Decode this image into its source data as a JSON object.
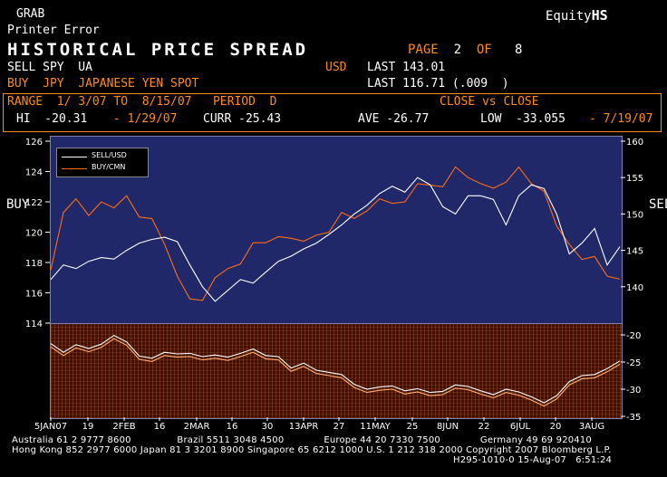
{
  "header": {
    "grab": "GRAB",
    "equity_label": "Equity",
    "function_code": "HS",
    "printer_error": "Printer Error",
    "title": "HISTORICAL PRICE SPREAD",
    "page_label": "PAGE",
    "page_num": "2",
    "page_of": "OF",
    "page_total": "8"
  },
  "legs": {
    "sell_line": "SELL SPY  UA",
    "sell_ccy": "USD",
    "sell_last": "LAST 143.01",
    "buy_line": "BUY  JPY  JAPANESE YEN SPOT",
    "buy_last": "LAST 116.71 (.009  )"
  },
  "range_bar": {
    "range_label": "RANGE  1/ 3/07 TO  8/15/07   PERIOD  D",
    "basis": "CLOSE vs CLOSE",
    "hi": "HI  -20.31",
    "hi_date": "- 1/29/07",
    "curr": "CURR -25.43",
    "ave": "AVE -26.77",
    "low": "LOW  -33.055",
    "low_date": "- 7/19/07"
  },
  "axis_titles": {
    "left": "BUY",
    "right": "SELL"
  },
  "legend": {
    "sell": "SELL/USD",
    "buy": "BUY/CMN"
  },
  "footer": {
    "line1": "Australia 61 2 9777 8600               Brazil 5511 3048 4500             Europe 44 20 7330 7500             Germany 49 69 920410",
    "line2": "Hong Kong 852 2977 6000 Japan 81 3 3201 8900 Singapore 65 6212 1000 U.S. 1 212 318 2000 Copyright 2007 Bloomberg L.P.",
    "line3": "H295-1010-0 15-Aug-07   6:51:24"
  },
  "colors": {
    "orange": "#ff8a1c",
    "price_panel": "#202869",
    "spread_panel": "#3a1108",
    "sell_line": "#ffffff",
    "buy_line": "#ff6a10"
  },
  "chart_data": [
    {
      "type": "line",
      "x_ticks": [
        "5JAN07",
        "19",
        "2FEB",
        "16",
        "2MAR",
        "16",
        "30",
        "13APR",
        "27",
        "11MAY",
        "25",
        "8JUN",
        "22",
        "6JUL",
        "20",
        "3AUG"
      ],
      "left_axis": {
        "label": "BUY",
        "range": [
          114,
          126
        ],
        "ticks": [
          114,
          116,
          118,
          120,
          122,
          124,
          126
        ]
      },
      "right_axis": {
        "label": "SELL",
        "range": [
          135,
          160
        ],
        "ticks": [
          140,
          145,
          150,
          155,
          160
        ]
      },
      "series": [
        {
          "name": "SELL/USD",
          "axis": "right",
          "values": [
            141,
            143,
            142.5,
            143.5,
            144,
            143.8,
            145,
            146,
            146.5,
            146.8,
            146.2,
            143,
            140,
            138,
            139.5,
            141,
            140.5,
            142,
            143.5,
            144.2,
            145.2,
            146,
            147.2,
            148.5,
            150,
            151.2,
            152.8,
            153.8,
            153,
            155,
            154,
            151,
            150,
            152.5,
            152.5,
            152,
            148.5,
            152.5,
            154,
            153.5,
            150,
            144.5,
            146,
            148,
            143,
            145.5
          ]
        },
        {
          "name": "BUY/CMN",
          "axis": "left",
          "values": [
            117.5,
            121.3,
            122.2,
            121.1,
            122.0,
            121.6,
            122.4,
            121.0,
            120.9,
            119.2,
            117.1,
            115.6,
            115.5,
            117.0,
            117.6,
            117.9,
            119.3,
            119.3,
            119.7,
            119.6,
            119.4,
            119.8,
            120.0,
            121.3,
            120.9,
            121.4,
            122.2,
            121.9,
            122.0,
            123.2,
            123.1,
            123.0,
            124.3,
            123.6,
            123.2,
            122.9,
            123.3,
            124.3,
            123.2,
            122.7,
            120.4,
            119.2,
            118.2,
            118.4,
            117.1,
            116.9
          ]
        }
      ]
    },
    {
      "type": "line",
      "right_axis": {
        "range": [
          -35,
          -18
        ],
        "ticks": [
          -20,
          -25,
          -30,
          -35
        ]
      },
      "series": [
        {
          "name": "spread",
          "values": [
            -22.2,
            -23.8,
            -22.4,
            -23.1,
            -22.3,
            -20.7,
            -21.9,
            -24.5,
            -24.9,
            -23.8,
            -24.1,
            -24.0,
            -24.6,
            -24.3,
            -24.7,
            -24.0,
            -23.2,
            -24.4,
            -24.6,
            -26.7,
            -25.8,
            -27.1,
            -27.5,
            -27.9,
            -29.7,
            -30.6,
            -30.2,
            -30.0,
            -30.9,
            -30.5,
            -31.2,
            -31.0,
            -29.8,
            -30.1,
            -30.9,
            -31.6,
            -30.6,
            -31.1,
            -32.0,
            -33.1,
            -31.8,
            -29.2,
            -28.1,
            -27.9,
            -26.8,
            -25.4
          ]
        }
      ]
    }
  ]
}
